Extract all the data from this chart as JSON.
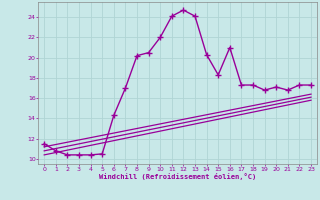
{
  "xlabel": "Windchill (Refroidissement éolien,°C)",
  "bg_color": "#c8e8e8",
  "line_color": "#990099",
  "grid_color": "#b0d4d4",
  "xlim": [
    -0.5,
    23.5
  ],
  "ylim": [
    9.5,
    25.5
  ],
  "yticks": [
    10,
    12,
    14,
    16,
    18,
    20,
    22,
    24
  ],
  "xticks": [
    0,
    1,
    2,
    3,
    4,
    5,
    6,
    7,
    8,
    9,
    10,
    11,
    12,
    13,
    14,
    15,
    16,
    17,
    18,
    19,
    20,
    21,
    22,
    23
  ],
  "curve1_x": [
    0,
    1,
    2,
    3,
    4,
    5,
    6,
    7,
    8,
    9,
    10,
    11,
    12,
    13,
    14,
    15,
    16,
    17,
    18,
    19,
    20,
    21,
    22,
    23
  ],
  "curve1_y": [
    11.5,
    10.8,
    10.4,
    10.4,
    10.4,
    10.5,
    14.3,
    17.0,
    20.2,
    20.5,
    22.0,
    24.1,
    24.7,
    24.1,
    20.3,
    18.3,
    21.0,
    17.3,
    17.3,
    16.8,
    17.1,
    16.8,
    17.3,
    17.3
  ],
  "curve2_x": [
    0,
    23
  ],
  "curve2_y": [
    11.2,
    16.4
  ],
  "curve3_x": [
    0,
    23
  ],
  "curve3_y": [
    10.8,
    16.1
  ],
  "curve4_x": [
    0,
    23
  ],
  "curve4_y": [
    10.4,
    15.8
  ]
}
